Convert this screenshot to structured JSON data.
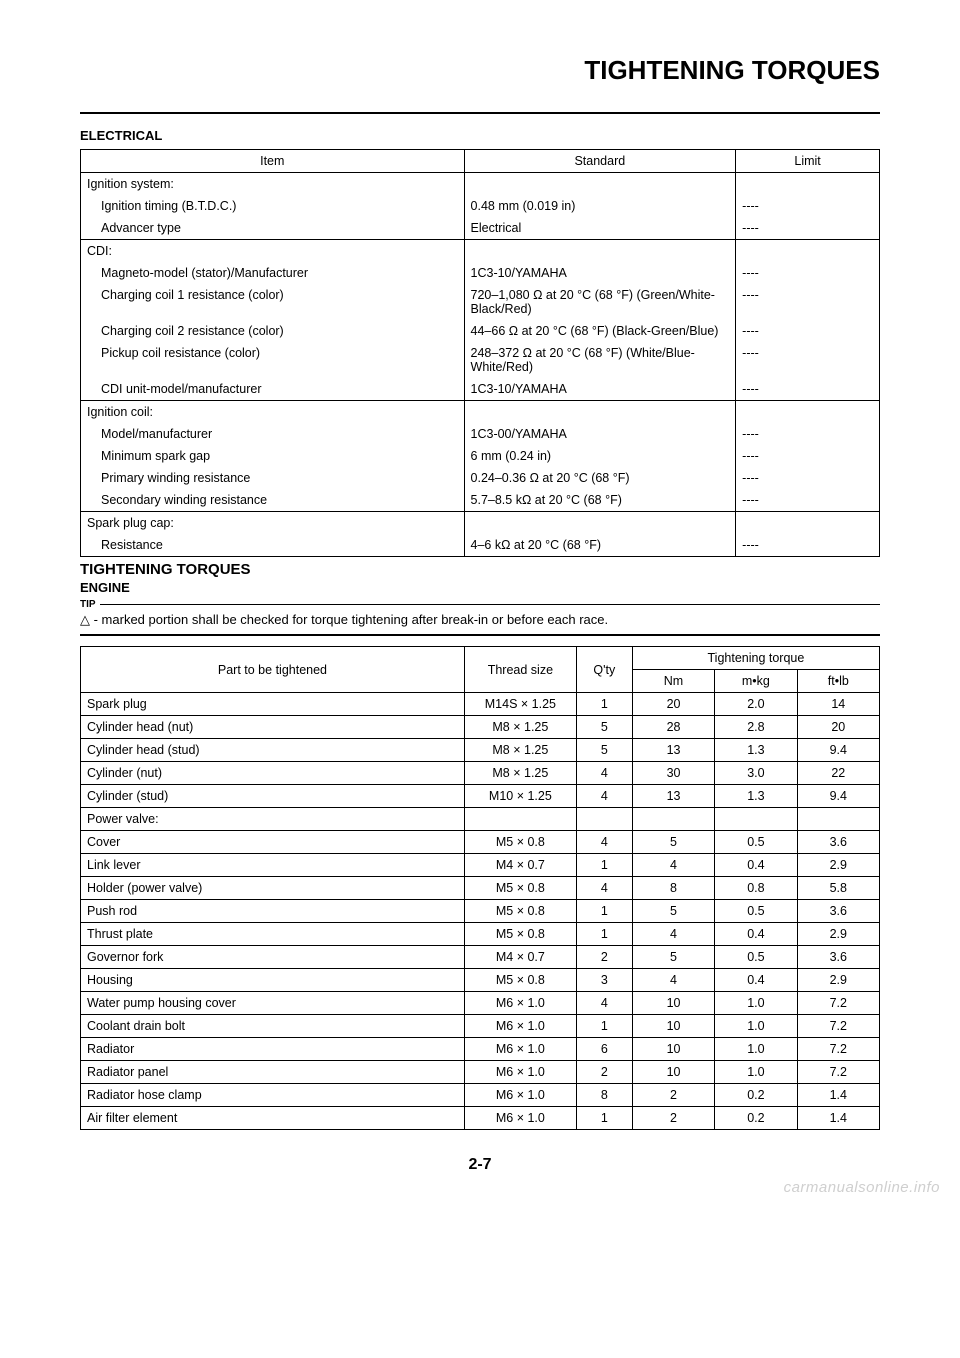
{
  "page": {
    "title": "TIGHTENING TORQUES",
    "number": "2-7",
    "watermark": "carmanualsonline.info"
  },
  "electrical": {
    "heading": "ELECTRICAL",
    "columns": [
      "Item",
      "Standard",
      "Limit"
    ],
    "groups": [
      {
        "header": "Ignition system:",
        "rows": [
          {
            "item": "Ignition timing (B.T.D.C.)",
            "standard": "0.48 mm (0.019 in)",
            "limit": "----"
          },
          {
            "item": "Advancer type",
            "standard": "Electrical",
            "limit": "----"
          }
        ]
      },
      {
        "header": "CDI:",
        "rows": [
          {
            "item": "Magneto-model (stator)/Manufacturer",
            "standard": "1C3-10/YAMAHA",
            "limit": "----"
          },
          {
            "item": "Charging coil 1 resistance (color)",
            "standard": "720–1,080 Ω at 20 °C (68 °F) (Green/White-Black/Red)",
            "limit": "----"
          },
          {
            "item": "Charging coil 2 resistance (color)",
            "standard": "44–66 Ω at 20 °C (68 °F) (Black-Green/Blue)",
            "limit": "----"
          },
          {
            "item": "Pickup coil resistance (color)",
            "standard": "248–372 Ω at 20 °C (68 °F) (White/Blue-White/Red)",
            "limit": "----"
          },
          {
            "item": "CDI unit-model/manufacturer",
            "standard": "1C3-10/YAMAHA",
            "limit": "----"
          }
        ]
      },
      {
        "header": "Ignition coil:",
        "rows": [
          {
            "item": "Model/manufacturer",
            "standard": "1C3-00/YAMAHA",
            "limit": "----"
          },
          {
            "item": "Minimum spark gap",
            "standard": "6 mm (0.24 in)",
            "limit": "----"
          },
          {
            "item": "Primary winding resistance",
            "standard": "0.24–0.36 Ω at 20 °C (68 °F)",
            "limit": "----"
          },
          {
            "item": "Secondary winding resistance",
            "standard": "5.7–8.5 kΩ at 20 °C (68 °F)",
            "limit": "----"
          }
        ]
      },
      {
        "header": "Spark plug cap:",
        "rows": [
          {
            "item": "Resistance",
            "standard": "4–6 kΩ at 20 °C (68 °F)",
            "limit": "----"
          }
        ]
      }
    ]
  },
  "torques": {
    "heading": "TIGHTENING TORQUES",
    "subheading": "ENGINE",
    "tip_label": "TIP",
    "tip_text": "△ - marked portion shall be checked for torque tightening after break-in or before each race.",
    "columns": {
      "part": "Part to be tightened",
      "thread": "Thread size",
      "qty": "Q'ty",
      "torque_group": "Tightening torque",
      "nm": "Nm",
      "mkg": "m•kg",
      "ftlb": "ft•lb"
    },
    "rows": [
      {
        "part": "Spark plug",
        "thread": "M14S × 1.25",
        "qty": "1",
        "nm": "20",
        "mkg": "2.0",
        "ftlb": "14"
      },
      {
        "part": "Cylinder head (nut)",
        "thread": "M8 × 1.25",
        "qty": "5",
        "nm": "28",
        "mkg": "2.8",
        "ftlb": "20"
      },
      {
        "part": "Cylinder head (stud)",
        "thread": "M8 × 1.25",
        "qty": "5",
        "nm": "13",
        "mkg": "1.3",
        "ftlb": "9.4"
      },
      {
        "part": "Cylinder (nut)",
        "thread": "M8 × 1.25",
        "qty": "4",
        "nm": "30",
        "mkg": "3.0",
        "ftlb": "22"
      },
      {
        "part": "Cylinder (stud)",
        "thread": "M10 × 1.25",
        "qty": "4",
        "nm": "13",
        "mkg": "1.3",
        "ftlb": "9.4"
      },
      {
        "part": "Power valve:",
        "thread": "",
        "qty": "",
        "nm": "",
        "mkg": "",
        "ftlb": ""
      },
      {
        "part": "Cover",
        "thread": "M5 × 0.8",
        "qty": "4",
        "nm": "5",
        "mkg": "0.5",
        "ftlb": "3.6"
      },
      {
        "part": "Link lever",
        "thread": "M4 × 0.7",
        "qty": "1",
        "nm": "4",
        "mkg": "0.4",
        "ftlb": "2.9"
      },
      {
        "part": "Holder (power valve)",
        "thread": "M5 × 0.8",
        "qty": "4",
        "nm": "8",
        "mkg": "0.8",
        "ftlb": "5.8"
      },
      {
        "part": "Push rod",
        "thread": "M5 × 0.8",
        "qty": "1",
        "nm": "5",
        "mkg": "0.5",
        "ftlb": "3.6"
      },
      {
        "part": "Thrust plate",
        "thread": "M5 × 0.8",
        "qty": "1",
        "nm": "4",
        "mkg": "0.4",
        "ftlb": "2.9"
      },
      {
        "part": "Governor fork",
        "thread": "M4 × 0.7",
        "qty": "2",
        "nm": "5",
        "mkg": "0.5",
        "ftlb": "3.6"
      },
      {
        "part": "Housing",
        "thread": "M5 × 0.8",
        "qty": "3",
        "nm": "4",
        "mkg": "0.4",
        "ftlb": "2.9"
      },
      {
        "part": "Water pump housing cover",
        "thread": "M6 × 1.0",
        "qty": "4",
        "nm": "10",
        "mkg": "1.0",
        "ftlb": "7.2"
      },
      {
        "part": "Coolant drain bolt",
        "thread": "M6 × 1.0",
        "qty": "1",
        "nm": "10",
        "mkg": "1.0",
        "ftlb": "7.2"
      },
      {
        "part": "Radiator",
        "thread": "M6 × 1.0",
        "qty": "6",
        "nm": "10",
        "mkg": "1.0",
        "ftlb": "7.2"
      },
      {
        "part": "Radiator panel",
        "thread": "M6 × 1.0",
        "qty": "2",
        "nm": "10",
        "mkg": "1.0",
        "ftlb": "7.2"
      },
      {
        "part": "Radiator hose clamp",
        "thread": "M6 × 1.0",
        "qty": "8",
        "nm": "2",
        "mkg": "0.2",
        "ftlb": "1.4"
      },
      {
        "part": "Air filter element",
        "thread": "M6 × 1.0",
        "qty": "1",
        "nm": "2",
        "mkg": "0.2",
        "ftlb": "1.4"
      }
    ]
  }
}
